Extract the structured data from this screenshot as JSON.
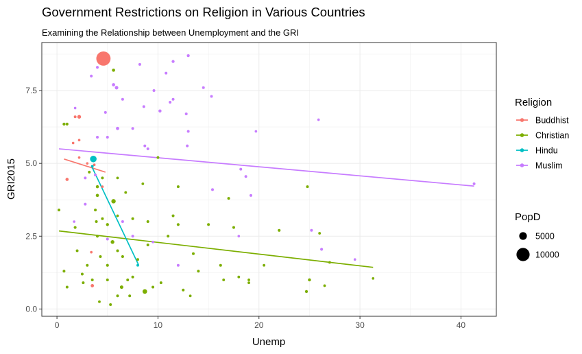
{
  "chart_data": {
    "type": "scatter",
    "title": "Government Restrictions on Religion in Various Countries",
    "subtitle": "Examining the Relationship between Unemployment and the GRI",
    "xlabel": "Unemp",
    "ylabel": "GRI2015",
    "xlim": [
      -1.5,
      43.5
    ],
    "ylim": [
      -0.25,
      9.15
    ],
    "xticks": [
      0,
      10,
      20,
      30,
      40
    ],
    "yticks": [
      0.0,
      2.5,
      5.0,
      7.5
    ],
    "ytick_labels": [
      "0.0",
      "2.5",
      "5.0",
      "7.5"
    ],
    "grid": true,
    "legend": {
      "position": "right",
      "color_title": "Religion",
      "size_title": "PopD",
      "size_entries": [
        {
          "label": "5000",
          "value": 5000
        },
        {
          "label": "10000",
          "value": 10000
        }
      ]
    },
    "series": [
      {
        "name": "Buddhist",
        "color": "#F8766D",
        "points": [
          [
            4.6,
            8.6,
            11000
          ],
          [
            2.2,
            6.6,
            1400
          ],
          [
            1.8,
            6.6,
            500
          ],
          [
            1.0,
            4.45,
            900
          ],
          [
            2.2,
            5.2,
            300
          ],
          [
            4.5,
            4.2,
            300
          ],
          [
            3.0,
            5.0,
            300
          ],
          [
            3.7,
            4.95,
            300
          ],
          [
            3.4,
            1.95,
            300
          ],
          [
            3.5,
            0.8,
            1000
          ],
          [
            1.6,
            5.7,
            300
          ],
          [
            2.2,
            5.8,
            300
          ]
        ],
        "fit": [
          [
            0.7,
            5.15
          ],
          [
            4.8,
            4.7
          ]
        ]
      },
      {
        "name": "Christian",
        "color": "#7CAE00",
        "points": [
          [
            5.6,
            8.2,
            900
          ],
          [
            0.7,
            6.35,
            700
          ],
          [
            1.0,
            6.35,
            600
          ],
          [
            5.6,
            3.7,
            2000
          ],
          [
            4.0,
            3.9,
            900
          ],
          [
            5.5,
            2.3,
            1400
          ],
          [
            6.4,
            0.75,
            1200
          ],
          [
            8.7,
            0.6,
            2200
          ],
          [
            4.0,
            4.2,
            800
          ],
          [
            4.5,
            4.5,
            500
          ],
          [
            3.2,
            4.7,
            500
          ],
          [
            1.8,
            2.8,
            600
          ],
          [
            2.0,
            2.0,
            500
          ],
          [
            3.0,
            1.5,
            500
          ],
          [
            2.6,
            0.9,
            500
          ],
          [
            4.0,
            2.5,
            600
          ],
          [
            5.0,
            2.9,
            700
          ],
          [
            5.0,
            1.5,
            600
          ],
          [
            6.5,
            1.8,
            600
          ],
          [
            7.0,
            1.0,
            500
          ],
          [
            8.0,
            1.7,
            500
          ],
          [
            9.0,
            2.2,
            500
          ],
          [
            10.0,
            5.2,
            500
          ],
          [
            12.0,
            4.2,
            500
          ],
          [
            11.5,
            3.2,
            600
          ],
          [
            12.0,
            2.9,
            600
          ],
          [
            13.5,
            1.9,
            500
          ],
          [
            14.0,
            1.3,
            500
          ],
          [
            15.0,
            2.9,
            500
          ],
          [
            16.2,
            1.5,
            500
          ],
          [
            17.0,
            3.8,
            500
          ],
          [
            17.5,
            2.8,
            600
          ],
          [
            18.0,
            1.1,
            400
          ],
          [
            19.0,
            1.0,
            400
          ],
          [
            20.5,
            1.5,
            400
          ],
          [
            22.0,
            2.7,
            600
          ],
          [
            24.8,
            4.2,
            500
          ],
          [
            25.0,
            1.0,
            800
          ],
          [
            24.7,
            0.6,
            700
          ],
          [
            26.0,
            2.6,
            400
          ],
          [
            27.0,
            1.6,
            400
          ],
          [
            31.3,
            1.05,
            300
          ],
          [
            0.2,
            3.4,
            500
          ],
          [
            0.7,
            1.3,
            500
          ],
          [
            1.0,
            0.75,
            500
          ],
          [
            3.5,
            1.0,
            500
          ],
          [
            4.2,
            0.25,
            400
          ],
          [
            5.3,
            0.15,
            500
          ],
          [
            6.0,
            0.45,
            500
          ],
          [
            7.2,
            0.45,
            500
          ],
          [
            9.5,
            0.75,
            500
          ],
          [
            10.3,
            0.9,
            500
          ],
          [
            12.5,
            0.65,
            500
          ],
          [
            13.2,
            0.45,
            400
          ],
          [
            9.0,
            3.0,
            500
          ],
          [
            7.5,
            3.1,
            500
          ],
          [
            3.8,
            3.4,
            500
          ],
          [
            3.9,
            3.0,
            500
          ],
          [
            6.0,
            4.5,
            400
          ],
          [
            6.8,
            4.0,
            400
          ],
          [
            8.5,
            4.3,
            400
          ],
          [
            11.0,
            2.5,
            500
          ],
          [
            16.5,
            1.0,
            400
          ],
          [
            19.0,
            0.9,
            400
          ],
          [
            26.5,
            0.8,
            400
          ],
          [
            6.0,
            3.2,
            400
          ],
          [
            4.5,
            3.1,
            500
          ],
          [
            5.0,
            1.0,
            500
          ],
          [
            6.0,
            2.0,
            500
          ],
          [
            2.5,
            1.2,
            500
          ],
          [
            7.5,
            1.1,
            500
          ],
          [
            4.3,
            1.8,
            500
          ]
        ],
        "fit": [
          [
            0.2,
            2.68
          ],
          [
            31.3,
            1.43
          ]
        ]
      },
      {
        "name": "Hindu",
        "color": "#00BFC4",
        "points": [
          [
            3.6,
            5.15,
            4000
          ],
          [
            3.5,
            4.9,
            500
          ],
          [
            8.0,
            1.5,
            400
          ]
        ],
        "fit": [
          [
            3.5,
            4.85
          ],
          [
            8.1,
            1.5
          ]
        ]
      },
      {
        "name": "Muslim",
        "color": "#C77CFF",
        "points": [
          [
            3.4,
            8.0,
            600
          ],
          [
            4.0,
            8.3,
            500
          ],
          [
            8.2,
            8.4,
            500
          ],
          [
            10.8,
            8.1,
            500
          ],
          [
            11.5,
            8.5,
            700
          ],
          [
            13.0,
            8.7,
            700
          ],
          [
            5.9,
            7.6,
            1200
          ],
          [
            5.6,
            7.7,
            1000
          ],
          [
            9.6,
            7.5,
            500
          ],
          [
            11.2,
            7.1,
            500
          ],
          [
            11.5,
            7.2,
            500
          ],
          [
            14.5,
            7.6,
            500
          ],
          [
            15.3,
            7.3,
            500
          ],
          [
            6.5,
            7.2,
            500
          ],
          [
            8.6,
            6.95,
            500
          ],
          [
            10.2,
            6.8,
            800
          ],
          [
            12.8,
            6.7,
            500
          ],
          [
            4.8,
            6.75,
            500
          ],
          [
            6.0,
            6.2,
            1000
          ],
          [
            7.5,
            6.2,
            500
          ],
          [
            1.8,
            6.9,
            300
          ],
          [
            13.0,
            6.1,
            500
          ],
          [
            4.0,
            5.9,
            500
          ],
          [
            5.0,
            5.9,
            500
          ],
          [
            8.7,
            5.6,
            500
          ],
          [
            9.0,
            5.5,
            500
          ],
          [
            12.9,
            5.6,
            500
          ],
          [
            19.7,
            6.1,
            300
          ],
          [
            25.9,
            6.5,
            300
          ],
          [
            2.8,
            4.5,
            500
          ],
          [
            2.8,
            3.6,
            500
          ],
          [
            3.8,
            4.6,
            500
          ],
          [
            6.5,
            3.0,
            500
          ],
          [
            15.4,
            4.1,
            500
          ],
          [
            18.2,
            4.8,
            500
          ],
          [
            18.7,
            4.55,
            500
          ],
          [
            19.2,
            3.9,
            500
          ],
          [
            25.2,
            2.7,
            500
          ],
          [
            26.2,
            2.05,
            600
          ],
          [
            29.5,
            1.7,
            300
          ],
          [
            41.3,
            4.3,
            500
          ],
          [
            5.0,
            2.4,
            500
          ],
          [
            1.7,
            3.0,
            300
          ],
          [
            7.5,
            2.5,
            500
          ],
          [
            9.5,
            2.3,
            300
          ],
          [
            12.0,
            1.5,
            500
          ],
          [
            18.0,
            2.5,
            300
          ]
        ],
        "fit": [
          [
            0.2,
            5.5
          ],
          [
            41.3,
            4.22
          ]
        ]
      }
    ]
  }
}
